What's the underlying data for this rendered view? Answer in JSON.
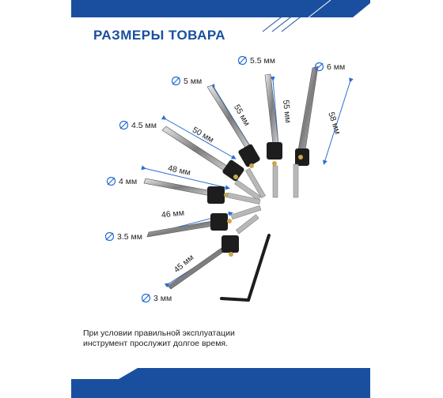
{
  "title": "РАЗМЕРЫ ТОВАРА",
  "brand_color": "#1a4fa0",
  "diameters": [
    "3 мм",
    "3.5 мм",
    "4 мм",
    "4.5 мм",
    "5 мм",
    "5.5 мм",
    "6 мм"
  ],
  "lengths": [
    "45 мм",
    "46 мм",
    "48 мм",
    "50 мм",
    "55 мм",
    "55 мм",
    "58 мм"
  ],
  "footer": {
    "line1": "При условии правильной эксплуатации",
    "line2": "инструмент прослужит долгое время."
  }
}
